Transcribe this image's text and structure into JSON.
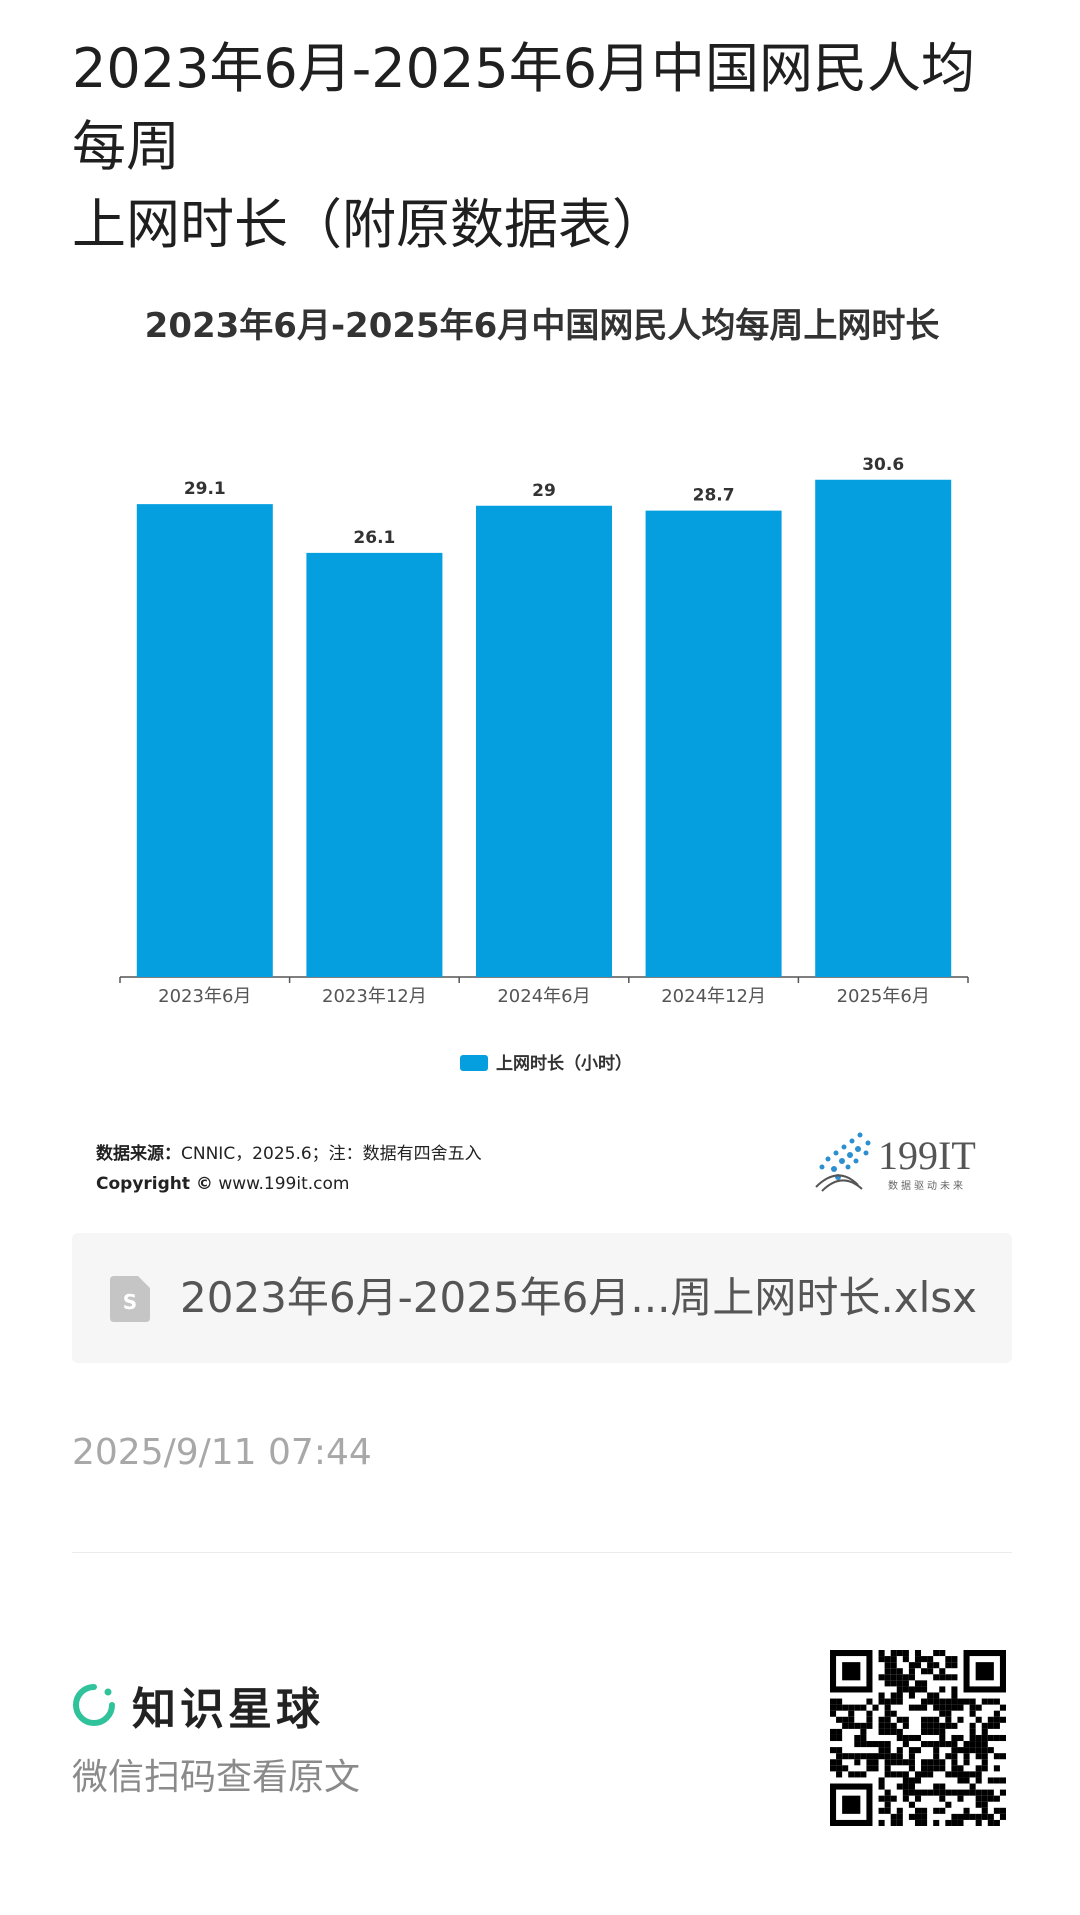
{
  "page": {
    "title_line1": "2023年6月-2025年6月中国网民人均每周",
    "title_line2": "上网时长（附原数据表）"
  },
  "chart_data": {
    "type": "bar",
    "title": "2023年6月-2025年6月中国网民人均每周上网时长",
    "categories": [
      "2023年6月",
      "2023年12月",
      "2024年6月",
      "2024年12月",
      "2025年6月"
    ],
    "series": [
      {
        "name": "上网时长（小时）",
        "values": [
          29.1,
          26.1,
          29,
          28.7,
          30.6
        ],
        "color": "#059fe0"
      }
    ],
    "value_labels": [
      "29.1",
      "26.1",
      "29",
      "28.7",
      "30.6"
    ],
    "ylim": [
      0,
      32
    ],
    "grid": false,
    "legend_position": "bottom-center"
  },
  "source": {
    "label": "数据来源：",
    "text": "CNNIC，2025.6；注：数据有四舍五入",
    "copyright_label": "Copyright ©",
    "copyright_site": "www.199it.com"
  },
  "logo": {
    "text_main": "199IT",
    "tagline": "数据驱动未来"
  },
  "attachment": {
    "icon": "spreadsheet-file-icon",
    "file_name": "2023年6月-2025年6月...周上网时长.xlsx"
  },
  "meta": {
    "timestamp": "2025/9/11 07:44"
  },
  "footer": {
    "brand_icon": "knowledge-planet-logo-icon",
    "brand_name": "知识星球",
    "scan_hint": "微信扫码查看原文",
    "qr_icon": "qr-code-icon"
  },
  "colors": {
    "bar": "#059fe0",
    "brand_green": "#2fc29b",
    "file_icon": "#c5c5c5"
  }
}
